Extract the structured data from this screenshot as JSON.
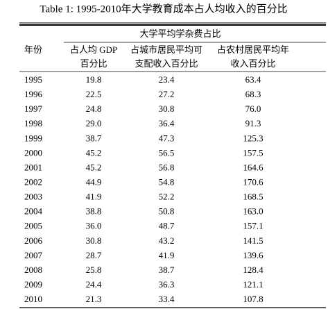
{
  "title": "Table 1: 1995-2010年大学教育成本占人均收入的百分比",
  "table": {
    "year_header": "年份",
    "group_header": "大学平均学杂费占比",
    "column_headers": [
      [
        "占人均 GDP",
        "百分比"
      ],
      [
        "占城市居民平均可",
        "支配收入百分比"
      ],
      [
        "占农村居民平均年",
        "收入百分比"
      ]
    ],
    "rows": [
      [
        "1995",
        "19.8",
        "23.4",
        "63.4"
      ],
      [
        "1996",
        "22.5",
        "27.2",
        "68.3"
      ],
      [
        "1997",
        "24.8",
        "30.8",
        "76.0"
      ],
      [
        "1998",
        "29.0",
        "36.4",
        "91.3"
      ],
      [
        "1999",
        "38.7",
        "47.3",
        "125.3"
      ],
      [
        "2000",
        "45.2",
        "56.5",
        "157.5"
      ],
      [
        "2001",
        "45.2",
        "56.8",
        "164.6"
      ],
      [
        "2002",
        "44.9",
        "54.8",
        "170.6"
      ],
      [
        "2003",
        "41.9",
        "52.2",
        "168.5"
      ],
      [
        "2004",
        "38.8",
        "50.8",
        "163.0"
      ],
      [
        "2005",
        "36.0",
        "48.7",
        "157.1"
      ],
      [
        "2006",
        "30.8",
        "43.2",
        "141.5"
      ],
      [
        "2007",
        "28.7",
        "41.9",
        "139.6"
      ],
      [
        "2008",
        "25.8",
        "38.7",
        "128.4"
      ],
      [
        "2009",
        "24.4",
        "36.3",
        "121.1"
      ],
      [
        "2010",
        "21.3",
        "33.4",
        "107.8"
      ]
    ]
  }
}
